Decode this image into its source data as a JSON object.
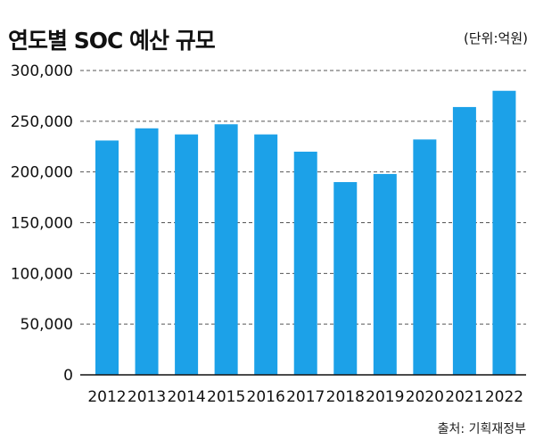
{
  "title": "연도별 SOC 예산 규모",
  "unit": "(단위:억원)",
  "source": "출처: 기획재정부",
  "colors": {
    "bar": "#1ca1e8",
    "grid": "#555555",
    "baseline": "#111111"
  },
  "chart_data": {
    "type": "bar",
    "title": "연도별 SOC 예산 규모",
    "xlabel": "",
    "ylabel": "",
    "ylim": [
      0,
      300000
    ],
    "yticks": [
      0,
      50000,
      100000,
      150000,
      200000,
      250000,
      300000
    ],
    "ytick_labels": [
      "0",
      "50,000",
      "100,000",
      "150,000",
      "200,000",
      "250,000",
      "300,000"
    ],
    "categories": [
      "2012",
      "2013",
      "2014",
      "2015",
      "2016",
      "2017",
      "2018",
      "2019",
      "2020",
      "2021",
      "2022"
    ],
    "values": [
      231000,
      243000,
      237000,
      247000,
      237000,
      220000,
      190000,
      198000,
      232000,
      264000,
      280000
    ],
    "grid": "horizontal dashed",
    "legend": "none"
  }
}
